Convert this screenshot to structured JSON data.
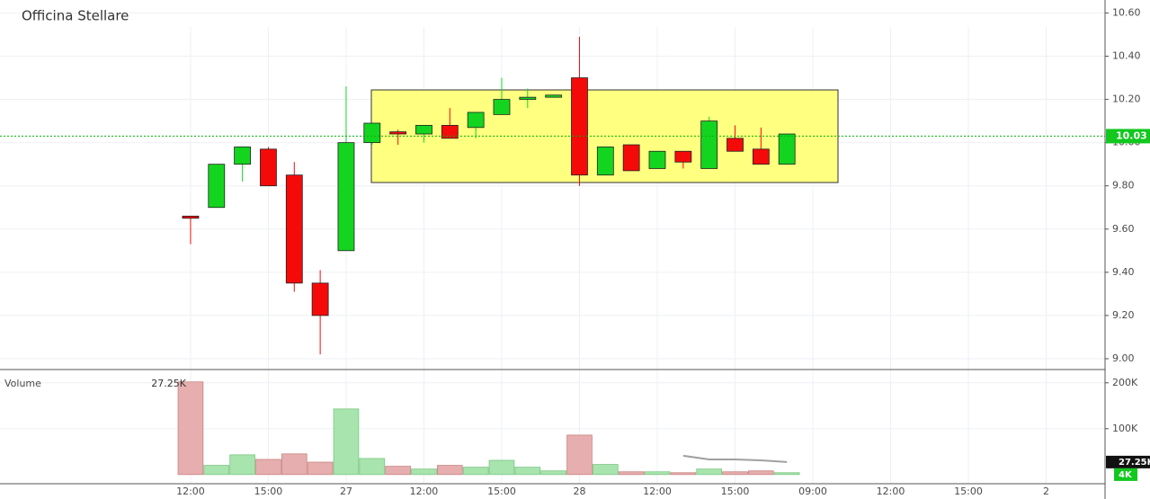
{
  "chart_data": {
    "type": "candlestick",
    "title": "Officina Stellare",
    "x": [
      0,
      1,
      2,
      3,
      4,
      5,
      6,
      7,
      8,
      9,
      10,
      11,
      12,
      13,
      14,
      15,
      16,
      17,
      18,
      19,
      20,
      21,
      22,
      23
    ],
    "open": [
      9.66,
      9.7,
      9.9,
      9.97,
      9.85,
      9.35,
      9.5,
      10.0,
      10.05,
      10.04,
      10.08,
      10.07,
      10.13,
      10.2,
      10.21,
      10.3,
      9.85,
      9.99,
      9.88,
      9.96,
      9.88,
      10.02,
      9.97,
      9.9
    ],
    "high": [
      9.66,
      9.9,
      9.98,
      9.98,
      9.91,
      9.41,
      10.26,
      10.09,
      10.06,
      10.08,
      10.16,
      10.14,
      10.3,
      10.25,
      10.22,
      10.49,
      9.98,
      9.99,
      9.96,
      9.96,
      10.12,
      10.08,
      10.07,
      10.04
    ],
    "low": [
      9.53,
      9.7,
      9.82,
      9.8,
      9.31,
      9.02,
      9.5,
      9.99,
      9.99,
      10.0,
      10.02,
      10.02,
      10.13,
      10.16,
      10.21,
      9.8,
      9.85,
      9.87,
      9.88,
      9.88,
      9.88,
      9.96,
      9.9,
      9.9
    ],
    "close": [
      9.65,
      9.9,
      9.98,
      9.8,
      9.35,
      9.2,
      10.0,
      10.09,
      10.04,
      10.08,
      10.02,
      10.14,
      10.2,
      10.21,
      10.22,
      9.85,
      9.98,
      9.87,
      9.96,
      9.91,
      10.1,
      9.96,
      9.9,
      10.04
    ],
    "up_color": "#13d51f",
    "down_color": "#f50a0a",
    "xlim": [
      -7.35,
      35.27
    ],
    "xticks": [
      {
        "value": 0,
        "label": "12:00"
      },
      {
        "value": 3,
        "label": "15:00"
      },
      {
        "value": 6,
        "label": "27"
      },
      {
        "value": 9,
        "label": "12:00"
      },
      {
        "value": 12,
        "label": "15:00"
      },
      {
        "value": 15,
        "label": "28"
      },
      {
        "value": 18,
        "label": "12:00"
      },
      {
        "value": 21,
        "label": "15:00"
      },
      {
        "value": 24,
        "label": "09:00"
      },
      {
        "value": 27,
        "label": "12:00"
      },
      {
        "value": 30,
        "label": "15:00"
      },
      {
        "value": 33,
        "label": "2"
      }
    ],
    "ylim": [
      8.95,
      10.66
    ],
    "yticks": [
      {
        "value": 9.0,
        "label": "9.00"
      },
      {
        "value": 9.2,
        "label": "9.20"
      },
      {
        "value": 9.4,
        "label": "9.40"
      },
      {
        "value": 9.6,
        "label": "9.60"
      },
      {
        "value": 9.8,
        "label": "9.80"
      },
      {
        "value": 10.0,
        "label": "10.00"
      },
      {
        "value": 10.2,
        "label": "10.20"
      },
      {
        "value": 10.4,
        "label": "10.40"
      },
      {
        "value": 10.6,
        "label": "10.60"
      }
    ],
    "last_price": 10.03,
    "grid": true,
    "volume": {
      "title": "Volume",
      "values": [
        202000,
        20000,
        43000,
        33000,
        45000,
        27000,
        143000,
        35000,
        18000,
        12000,
        20000,
        16000,
        31000,
        16000,
        8000,
        86000,
        22000,
        6000,
        6000,
        4000,
        12000,
        6000,
        8000,
        4000
      ],
      "ma": [
        null,
        null,
        null,
        null,
        null,
        null,
        null,
        null,
        null,
        null,
        null,
        null,
        null,
        null,
        null,
        null,
        null,
        null,
        null,
        41000,
        33000,
        33000,
        31000,
        27250
      ],
      "ma_color": "#a0a0a0",
      "ma_last": {
        "value": 27250,
        "label": "27.25K"
      },
      "last_volume": {
        "value": 4000,
        "label": "4K"
      },
      "ylim": [
        -20000,
        227000
      ],
      "yticks": [
        {
          "value": 100000,
          "label": "100K"
        },
        {
          "value": 200000,
          "label": "200K"
        }
      ]
    }
  }
}
